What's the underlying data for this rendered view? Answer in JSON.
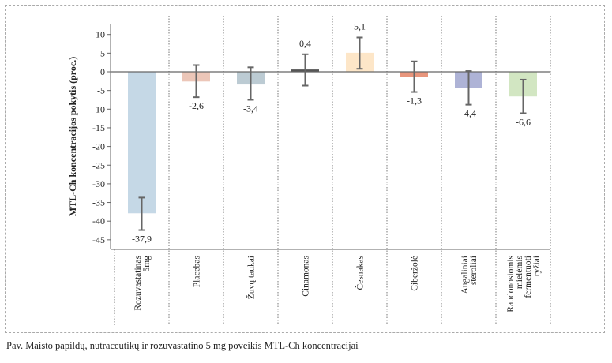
{
  "chart_data": {
    "type": "bar",
    "title": "",
    "xlabel": "",
    "ylabel": "MTL-Ch koncentracijos pokytis (proc.)",
    "ylim": [
      -45,
      10
    ],
    "yticks": [
      10,
      5,
      0,
      -5,
      -10,
      -15,
      -20,
      -25,
      -30,
      -35,
      -40,
      -45
    ],
    "categories": [
      [
        "Rozuvastatinas",
        "5mg"
      ],
      [
        "Placebas"
      ],
      [
        "Žuvų taukai"
      ],
      [
        "Cinamonas"
      ],
      [
        "Česnakas"
      ],
      [
        "Ciberžolė"
      ],
      [
        "Augaliniai",
        "steroliai"
      ],
      [
        "Raudonosiomis",
        "mielėmis",
        "fermentuoti",
        "ryžiai"
      ]
    ],
    "values": [
      -37.9,
      -2.6,
      -3.4,
      0.4,
      5.1,
      -1.3,
      -4.4,
      -6.6
    ],
    "value_labels": [
      "-37,9",
      "-2,6",
      "-3,4",
      "0,4",
      "5,1",
      "-1,3",
      "-4,4",
      "-6,6"
    ],
    "error_low": [
      -42.4,
      -6.8,
      -7.5,
      -3.7,
      0.8,
      -5.4,
      -8.8,
      -11.1
    ],
    "error_high": [
      -33.7,
      1.8,
      1.2,
      4.7,
      9.2,
      2.8,
      0.2,
      -2.1
    ],
    "colors": [
      "#c5d8e6",
      "#ecc6b8",
      "#bccbd3",
      "#555555",
      "#fde6c8",
      "#e8957c",
      "#aeb3d6",
      "#d2e6c2"
    ],
    "grid": false
  },
  "caption": "Pav. Maisto papildų, nutraceutikų ir rozuvastatino 5 mg poveikis MTL-Ch koncentracijai"
}
